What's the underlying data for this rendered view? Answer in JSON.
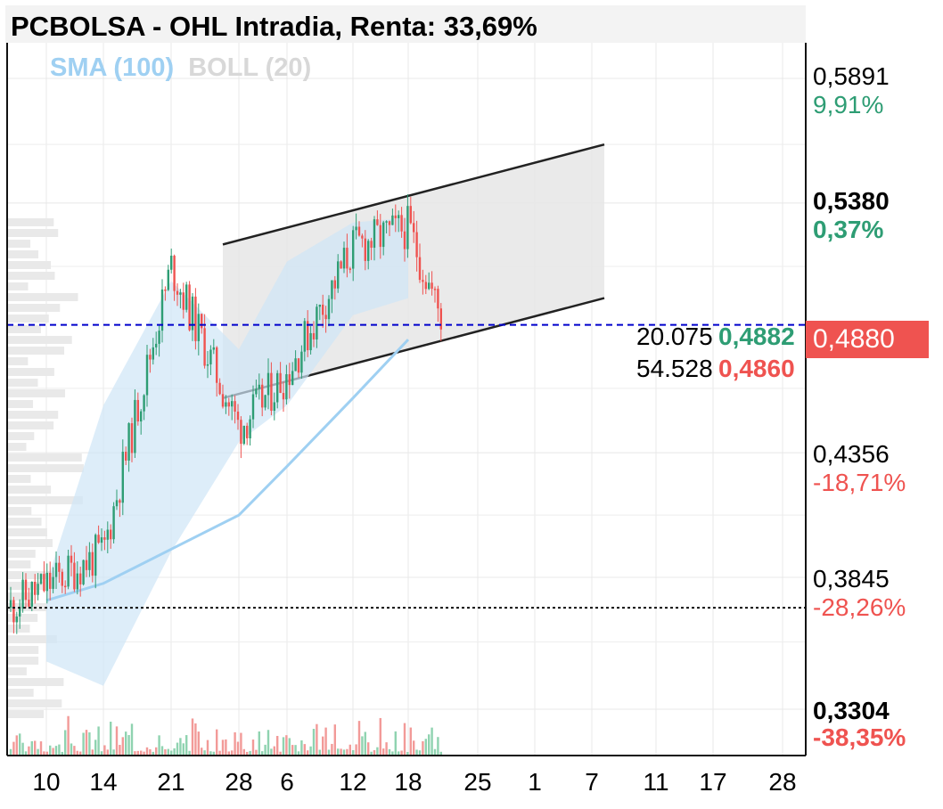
{
  "title": "PCBOLSA - OHL Intradia, Renta: 33,69%",
  "indicators": {
    "sma": "SMA (100)",
    "boll": "BOLL (20)"
  },
  "price_axis": [
    {
      "price": "0,5891",
      "pct": "9,91%",
      "sign": "pos",
      "bold": false
    },
    {
      "price": "0,5380",
      "pct": "0,37%",
      "sign": "pos",
      "bold": true
    },
    {
      "price": "0,4356",
      "pct": "-18,71%",
      "sign": "neg",
      "bold": false
    },
    {
      "price": "0,3845",
      "pct": "-28,26%",
      "sign": "neg",
      "bold": false
    },
    {
      "price": "0,3304",
      "pct": "-38,35%",
      "sign": "neg",
      "bold": true
    }
  ],
  "current_price": "0,4880",
  "order_book": {
    "bid_volume": "20.075",
    "bid_price": "0,4882",
    "ask_volume": "54.528",
    "ask_price": "0,4860"
  },
  "chart_data": {
    "type": "candlestick",
    "title": "PCBOLSA - OHL Intradia, Renta: 33,69%",
    "x_tick_labels": [
      "10",
      "14",
      "21",
      "28",
      "6",
      "12",
      "18",
      "25",
      "1",
      "7",
      "11",
      "17",
      "28"
    ],
    "y_ticks": [
      0.5891,
      0.538,
      0.4356,
      0.3845,
      0.3304
    ],
    "ylim": [
      0.315,
      0.606
    ],
    "current_price": 0.488,
    "reference_level": 0.372,
    "grid": true,
    "colors": {
      "up": "#2e9d74",
      "down": "#ef5350",
      "sma": "#9fd0f2",
      "band": "#cfe6f7",
      "channel": "#e6e6e6",
      "current_line": "#0000cc"
    },
    "series": [
      {
        "name": "SMA (100)",
        "type": "line",
        "x": [
          "10",
          "14",
          "21",
          "28",
          "6",
          "12",
          "18"
        ],
        "values": [
          0.375,
          0.382,
          0.396,
          0.41,
          0.43,
          0.458,
          0.482
        ]
      },
      {
        "name": "BOLL (20)",
        "type": "band",
        "x": [
          "10",
          "14",
          "21",
          "28",
          "6",
          "12",
          "18"
        ],
        "upper": [
          0.382,
          0.455,
          0.506,
          0.478,
          0.514,
          0.53,
          0.532
        ],
        "lower": [
          0.35,
          0.34,
          0.395,
          0.44,
          0.455,
          0.492,
          0.499
        ]
      }
    ],
    "price_path": {
      "x": [
        "10",
        "14",
        "21",
        "28",
        "6",
        "12",
        "18",
        "22"
      ],
      "close": [
        0.372,
        0.395,
        0.512,
        0.446,
        0.468,
        0.52,
        0.528,
        0.488
      ]
    },
    "channel": {
      "start": "28",
      "end": "7",
      "upper": [
        0.521,
        0.562
      ],
      "lower": [
        0.458,
        0.499
      ]
    }
  }
}
